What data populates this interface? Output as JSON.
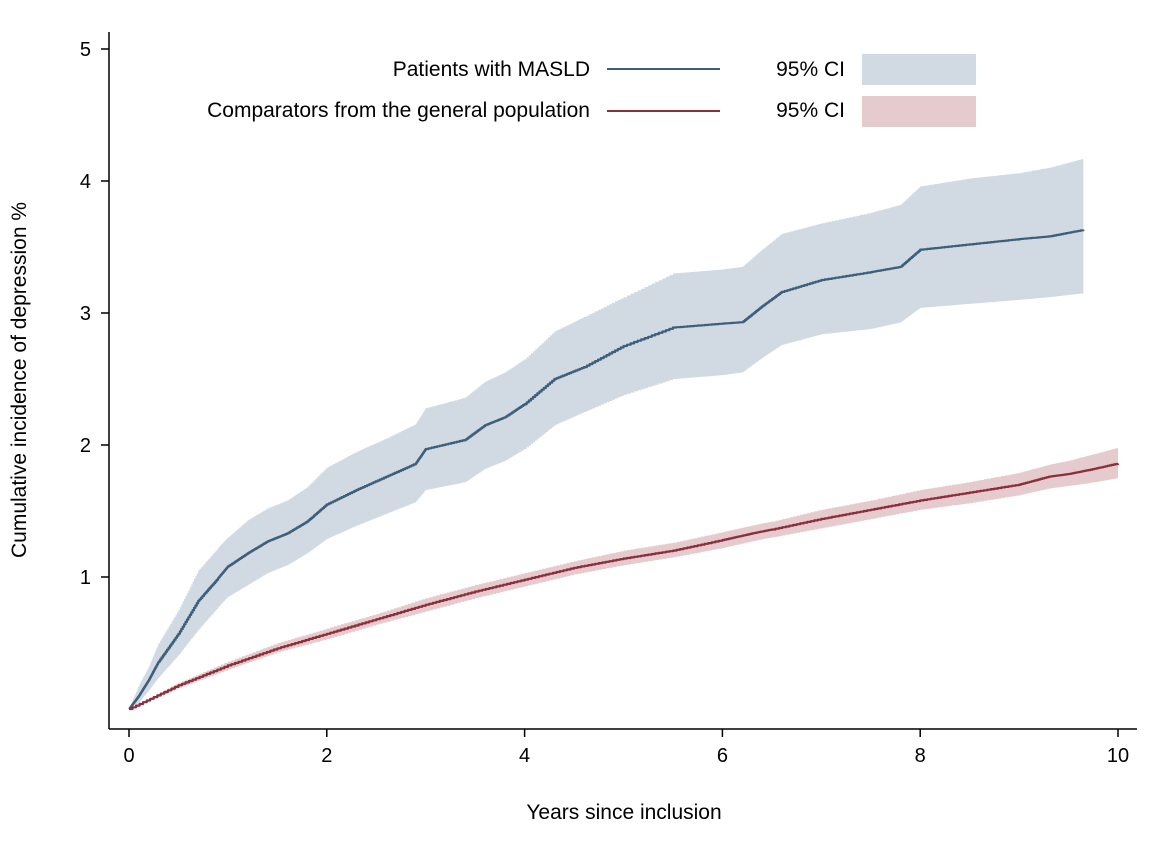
{
  "chart_data": {
    "type": "line",
    "xlabel": "Years since inclusion",
    "ylabel": "Cumulative incidence of depression %",
    "xlim": [
      0,
      10
    ],
    "ylim": [
      0,
      5
    ],
    "xticks": [
      0,
      2,
      4,
      6,
      8,
      10
    ],
    "yticks": [
      1,
      2,
      3,
      4,
      5
    ],
    "grid": false,
    "legend_position": "top",
    "series": [
      {
        "name": "Patients with MASLD",
        "ci_label": "95% CI",
        "color": "#3d5f7a",
        "ci_color": "#d1dae2",
        "x": [
          0,
          0.1,
          0.2,
          0.3,
          0.5,
          0.7,
          0.9,
          1.0,
          1.2,
          1.4,
          1.6,
          1.8,
          2.0,
          2.3,
          2.6,
          2.9,
          3.0,
          3.4,
          3.6,
          3.8,
          4.0,
          4.3,
          4.6,
          5.0,
          5.5,
          6.0,
          6.2,
          6.4,
          6.6,
          7.0,
          7.5,
          7.8,
          8.0,
          8.5,
          9.0,
          9.3,
          9.65
        ],
        "y": [
          0,
          0.1,
          0.22,
          0.36,
          0.57,
          0.82,
          0.99,
          1.08,
          1.18,
          1.27,
          1.33,
          1.42,
          1.55,
          1.66,
          1.76,
          1.86,
          1.97,
          2.04,
          2.15,
          2.21,
          2.31,
          2.5,
          2.59,
          2.75,
          2.89,
          2.92,
          2.93,
          3.05,
          3.16,
          3.25,
          3.31,
          3.35,
          3.48,
          3.52,
          3.56,
          3.58,
          3.63
        ],
        "ci_lower": [
          0,
          0.05,
          0.14,
          0.24,
          0.41,
          0.6,
          0.77,
          0.85,
          0.94,
          1.03,
          1.09,
          1.18,
          1.29,
          1.39,
          1.48,
          1.57,
          1.66,
          1.72,
          1.82,
          1.88,
          1.97,
          2.15,
          2.25,
          2.38,
          2.5,
          2.53,
          2.55,
          2.66,
          2.76,
          2.84,
          2.88,
          2.93,
          3.04,
          3.07,
          3.1,
          3.12,
          3.15
        ],
        "ci_upper": [
          0,
          0.18,
          0.32,
          0.5,
          0.75,
          1.05,
          1.22,
          1.3,
          1.43,
          1.52,
          1.58,
          1.68,
          1.83,
          1.95,
          2.05,
          2.16,
          2.28,
          2.36,
          2.48,
          2.55,
          2.65,
          2.86,
          2.97,
          3.12,
          3.3,
          3.33,
          3.35,
          3.48,
          3.6,
          3.68,
          3.76,
          3.82,
          3.96,
          4.02,
          4.06,
          4.1,
          4.17
        ]
      },
      {
        "name": "Comparators from the general population",
        "ci_label": "95% CI",
        "color": "#8b2f3c",
        "ci_color": "#e5cbcd",
        "x": [
          0,
          0.5,
          1.0,
          1.5,
          2.0,
          2.5,
          3.0,
          3.5,
          4.0,
          4.5,
          5.0,
          5.5,
          6.0,
          6.3,
          6.5,
          7.0,
          7.5,
          8.0,
          8.5,
          9.0,
          9.3,
          9.5,
          9.7,
          10.0
        ],
        "y": [
          0,
          0.18,
          0.33,
          0.46,
          0.57,
          0.68,
          0.79,
          0.89,
          0.98,
          1.07,
          1.14,
          1.2,
          1.28,
          1.33,
          1.36,
          1.44,
          1.51,
          1.58,
          1.64,
          1.7,
          1.76,
          1.78,
          1.81,
          1.86
        ],
        "ci_lower": [
          0,
          0.16,
          0.3,
          0.43,
          0.53,
          0.64,
          0.74,
          0.84,
          0.93,
          1.02,
          1.09,
          1.15,
          1.22,
          1.27,
          1.3,
          1.37,
          1.44,
          1.51,
          1.56,
          1.62,
          1.67,
          1.69,
          1.71,
          1.75
        ],
        "ci_upper": [
          0,
          0.2,
          0.36,
          0.5,
          0.61,
          0.72,
          0.84,
          0.94,
          1.03,
          1.12,
          1.2,
          1.26,
          1.34,
          1.39,
          1.42,
          1.51,
          1.58,
          1.66,
          1.72,
          1.79,
          1.85,
          1.88,
          1.92,
          1.98
        ]
      }
    ]
  }
}
